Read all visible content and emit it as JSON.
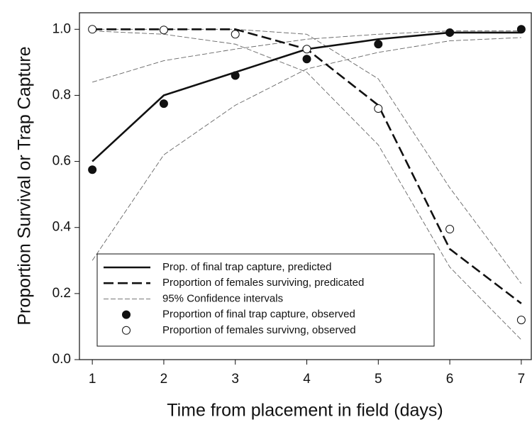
{
  "chart_data": {
    "type": "line",
    "x_label": "Time from placement in field (days)",
    "y_label": "Proportion Survival or Trap Capture",
    "x": [
      1,
      2,
      3,
      4,
      5,
      6,
      7
    ],
    "xlim": [
      0.82,
      7.14
    ],
    "xticks": [
      1,
      2,
      3,
      4,
      5,
      6,
      7
    ],
    "ylim": [
      0,
      1.05
    ],
    "yticks": [
      {
        "value": 0,
        "label": "0.0"
      },
      {
        "value": 0.2,
        "label": "0.2"
      },
      {
        "value": 0.4,
        "label": "0.4"
      },
      {
        "value": 0.6,
        "label": "0.6"
      },
      {
        "value": 0.8,
        "label": "0.8"
      },
      {
        "value": 1,
        "label": "1.0"
      }
    ],
    "series": [
      {
        "name": "Prop. of final trap capture, predicted",
        "color": "#111111",
        "style": "solid",
        "values": [
          0.6,
          0.8,
          0.87,
          0.94,
          0.97,
          0.99,
          0.99
        ]
      },
      {
        "name": "Proportion of females surviving, predicated",
        "color": "#111111",
        "style": "dash",
        "values": [
          1.0,
          1.0,
          1.0,
          0.94,
          0.77,
          0.335,
          0.17
        ]
      },
      {
        "name": "Proportion of final trap capture, observed",
        "color": "#111111",
        "marker": "filled",
        "values": [
          0.575,
          0.775,
          0.86,
          0.91,
          0.955,
          0.99,
          1.0
        ]
      },
      {
        "name": "Proportion of females survivng, observed",
        "color": "#111111",
        "marker": "open",
        "values": [
          1.0,
          0.998,
          0.985,
          0.94,
          0.76,
          0.395,
          0.12
        ]
      }
    ],
    "confidence_intervals": {
      "name": "95% Confidence intervals",
      "color": "#666666",
      "lines": [
        {
          "values": [
            0.3,
            0.62,
            0.77,
            0.88,
            0.93,
            0.965,
            0.975
          ]
        },
        {
          "values": [
            0.84,
            0.905,
            0.94,
            0.97,
            0.985,
            0.995,
            0.995
          ]
        },
        {
          "values": [
            0.995,
            0.985,
            0.955,
            0.87,
            0.65,
            0.28,
            0.06
          ]
        },
        {
          "values": [
            1.0,
            1.0,
            1.0,
            0.985,
            0.85,
            0.52,
            0.23
          ]
        }
      ]
    }
  }
}
